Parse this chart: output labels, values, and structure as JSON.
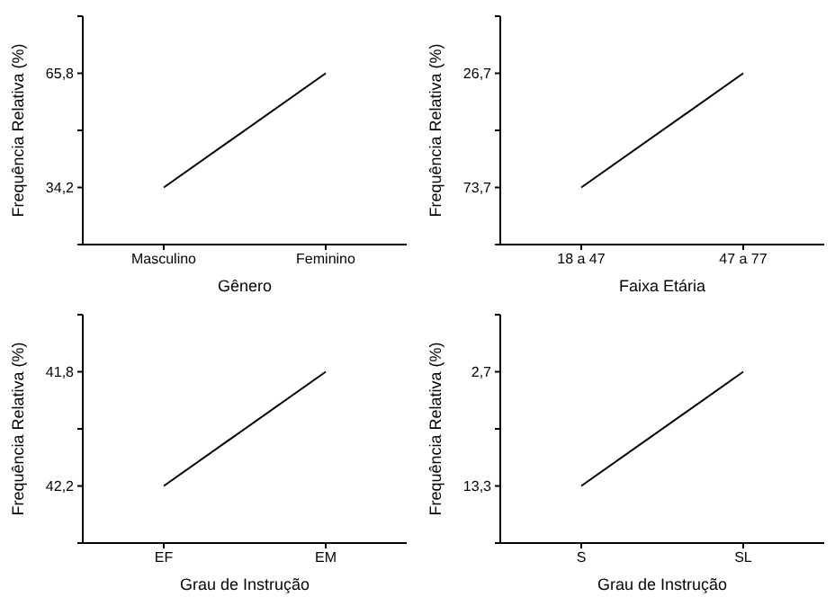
{
  "chart_data": [
    {
      "type": "line",
      "categories": [
        "Masculino",
        "Feminino"
      ],
      "values": [
        34.2,
        65.8
      ],
      "color": "#000000",
      "xlabel": "Gênero",
      "ylabel": "Frequência Relativa (%)",
      "ylim": [
        18.4,
        81.6
      ],
      "yticks": [
        {
          "value": 18.4,
          "label": null
        },
        {
          "value": 34.2,
          "label": "34,2"
        },
        {
          "value": 50,
          "label": null
        },
        {
          "value": 65.8,
          "label": "65,8"
        },
        {
          "value": 81.6,
          "label": null
        }
      ],
      "marker": "none",
      "grid": false
    },
    {
      "type": "line",
      "categories": [
        "18 a 47",
        "47 a 77"
      ],
      "values": [
        73.7,
        26.7
      ],
      "color": "#000000",
      "xlabel": "Faixa Etária",
      "ylabel": "Frequência Relativa (%)",
      "ylim": [
        97.2,
        3.2
      ],
      "yticks": [
        {
          "value": 97.2,
          "label": null
        },
        {
          "value": 73.7,
          "label": "73,7"
        },
        {
          "value": 50.2,
          "label": null
        },
        {
          "value": 26.7,
          "label": "26,7"
        },
        {
          "value": 3.2,
          "label": null
        }
      ],
      "marker": "none",
      "grid": false
    },
    {
      "type": "line",
      "categories": [
        "EF",
        "EM"
      ],
      "values": [
        42.2,
        41.8
      ],
      "color": "#000000",
      "xlabel": "Grau de Instrução",
      "ylabel": "Frequência Relativa (%)",
      "ylim": [
        42.4,
        41.6
      ],
      "yticks": [
        {
          "value": 42.4,
          "label": null
        },
        {
          "value": 42.2,
          "label": "42,2"
        },
        {
          "value": 42.0,
          "label": null
        },
        {
          "value": 41.8,
          "label": "41,8"
        },
        {
          "value": 41.6,
          "label": null
        }
      ],
      "marker": "none",
      "grid": false
    },
    {
      "type": "line",
      "categories": [
        "S",
        "SL"
      ],
      "values": [
        13.3,
        2.7
      ],
      "color": "#000000",
      "xlabel": "Grau de Instrução",
      "ylabel": "Frequência Relativa (%)",
      "ylim": [
        18.6,
        -2.6
      ],
      "yticks": [
        {
          "value": 18.6,
          "label": null
        },
        {
          "value": 13.3,
          "label": "13,3"
        },
        {
          "value": 8.0,
          "label": null
        },
        {
          "value": 2.7,
          "label": "2,7"
        },
        {
          "value": -2.6,
          "label": null
        }
      ],
      "marker": "none",
      "grid": false
    }
  ]
}
